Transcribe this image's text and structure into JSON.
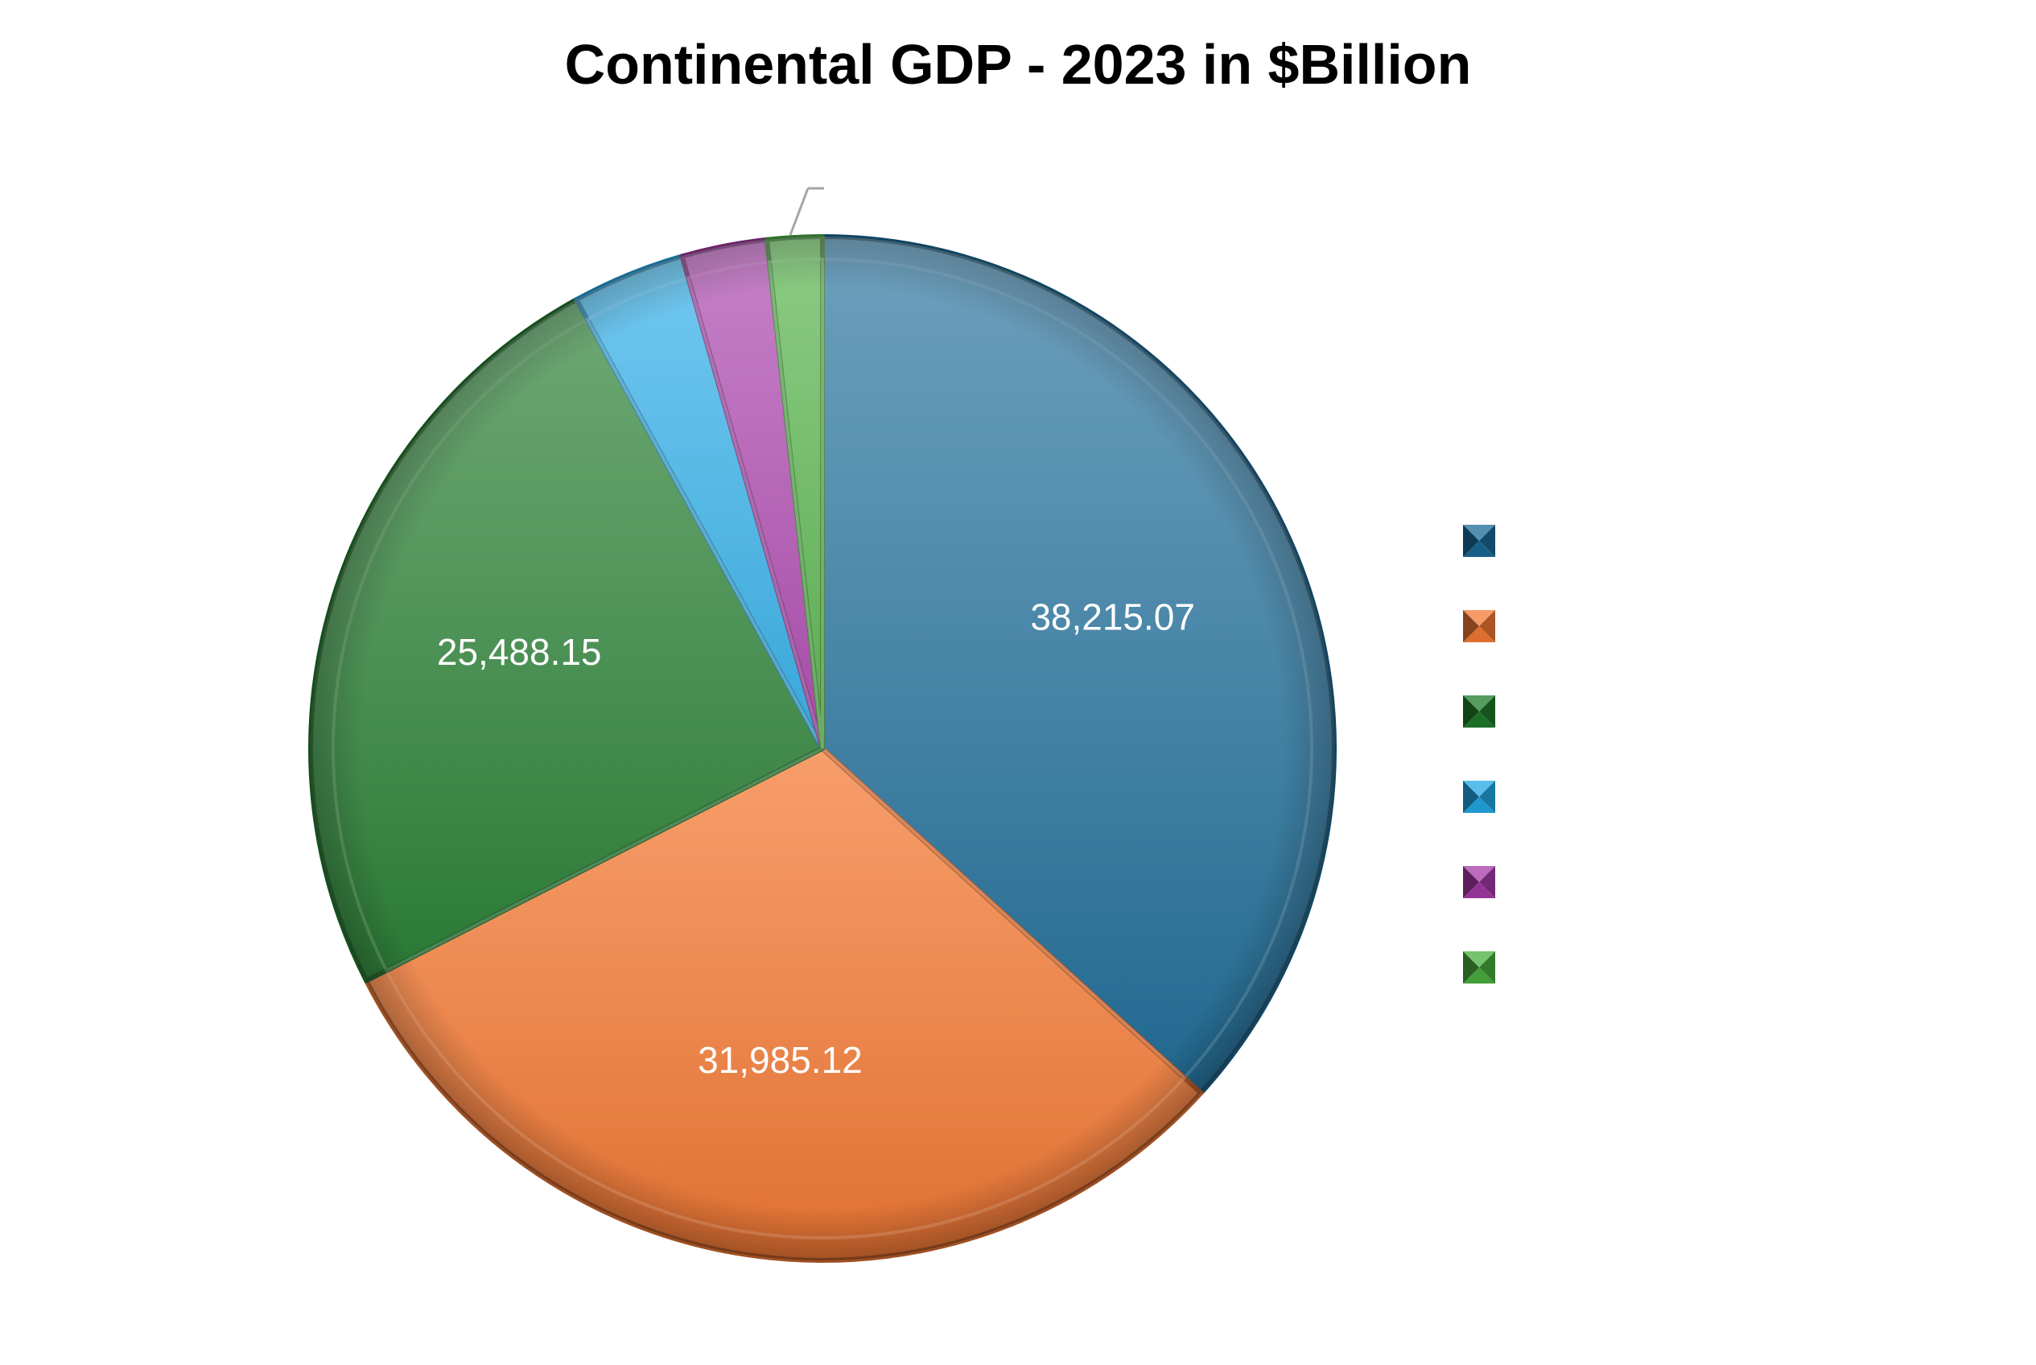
{
  "chart_data": {
    "type": "pie",
    "title": "Continental GDP - 2023 in $Billion",
    "categories": [
      "",
      "",
      "",
      "",
      "",
      ""
    ],
    "values": [
      38215.07,
      31985.12,
      25488.15,
      3700,
      2800,
      1800
    ],
    "data_labels": [
      "38,215.07",
      "31,985.12",
      "25,488.15",
      "",
      "",
      ""
    ],
    "colors": [
      "#1a6a97",
      "#f47a35",
      "#1e7a2a",
      "#22a8e6",
      "#a63aa8",
      "#4aae3e"
    ],
    "legend_position": "right"
  }
}
